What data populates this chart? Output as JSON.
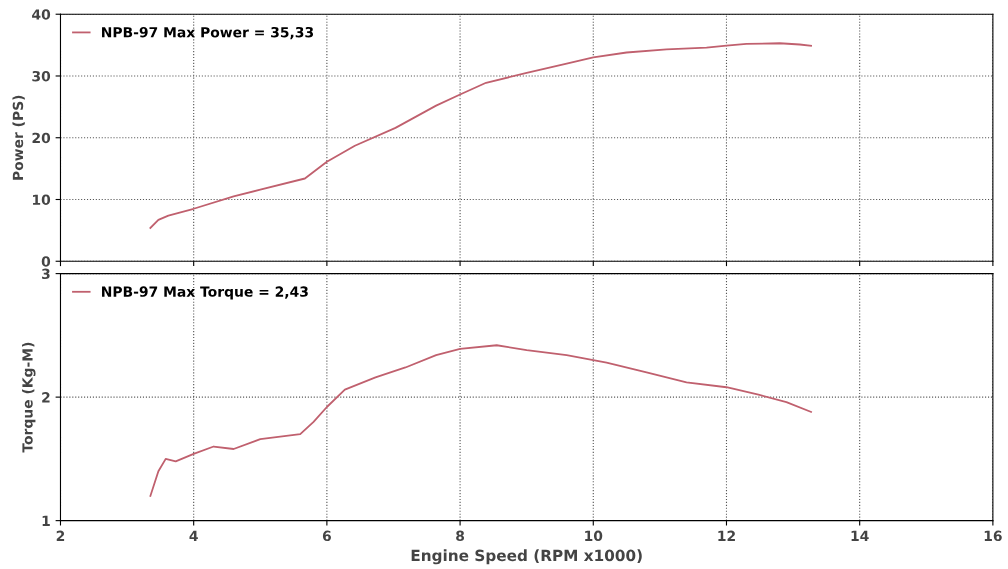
{
  "chart_data": [
    {
      "type": "line",
      "ylabel": "Power (PS)",
      "xlim": [
        2,
        16
      ],
      "xticks": [
        2,
        4,
        6,
        8,
        10,
        12,
        14,
        16
      ],
      "ylim": [
        0,
        40
      ],
      "yticks": [
        0,
        10,
        20,
        30,
        40
      ],
      "grid": true,
      "tick_labels": "y",
      "legend": "top left",
      "series": [
        {
          "name": "NPB-97 Max Power = 35,33",
          "color": "#c0606e",
          "x": [
            3.35,
            3.47,
            3.62,
            4.0,
            4.6,
            5.0,
            5.67,
            6.0,
            6.42,
            7.03,
            7.64,
            8.0,
            8.39,
            9.0,
            9.6,
            10.0,
            10.5,
            11.1,
            11.7,
            12.0,
            12.3,
            12.8,
            13.1,
            13.27
          ],
          "values": [
            5.4,
            6.7,
            7.4,
            8.5,
            10.5,
            11.6,
            13.4,
            16.1,
            18.7,
            21.6,
            25.2,
            27.0,
            28.9,
            30.5,
            32.0,
            33.0,
            33.8,
            34.3,
            34.6,
            34.9,
            35.2,
            35.3,
            35.1,
            34.9
          ]
        }
      ]
    },
    {
      "type": "line",
      "ylabel": "Torque (Kg-M)",
      "xlabel": "Engine Speed (RPM x1000)",
      "xlim": [
        2,
        16
      ],
      "xticks": [
        2,
        4,
        6,
        8,
        10,
        12,
        14,
        16
      ],
      "ylim": [
        1,
        3
      ],
      "yticks": [
        1,
        2,
        3
      ],
      "grid": true,
      "legend": "top left",
      "series": [
        {
          "name": "NPB-97 Max Torque = 2,43",
          "color": "#c0606e",
          "x": [
            3.35,
            3.47,
            3.58,
            3.73,
            4.0,
            4.3,
            4.6,
            5.0,
            5.6,
            5.8,
            6.0,
            6.27,
            6.73,
            7.18,
            7.64,
            8.0,
            8.55,
            9.0,
            9.6,
            10.2,
            10.8,
            11.4,
            12.0,
            12.48,
            12.9,
            13.27
          ],
          "values": [
            1.2,
            1.4,
            1.5,
            1.48,
            1.54,
            1.6,
            1.58,
            1.66,
            1.7,
            1.8,
            1.92,
            2.06,
            2.16,
            2.24,
            2.34,
            2.39,
            2.42,
            2.38,
            2.34,
            2.28,
            2.2,
            2.12,
            2.08,
            2.02,
            1.96,
            1.88
          ]
        }
      ]
    }
  ]
}
